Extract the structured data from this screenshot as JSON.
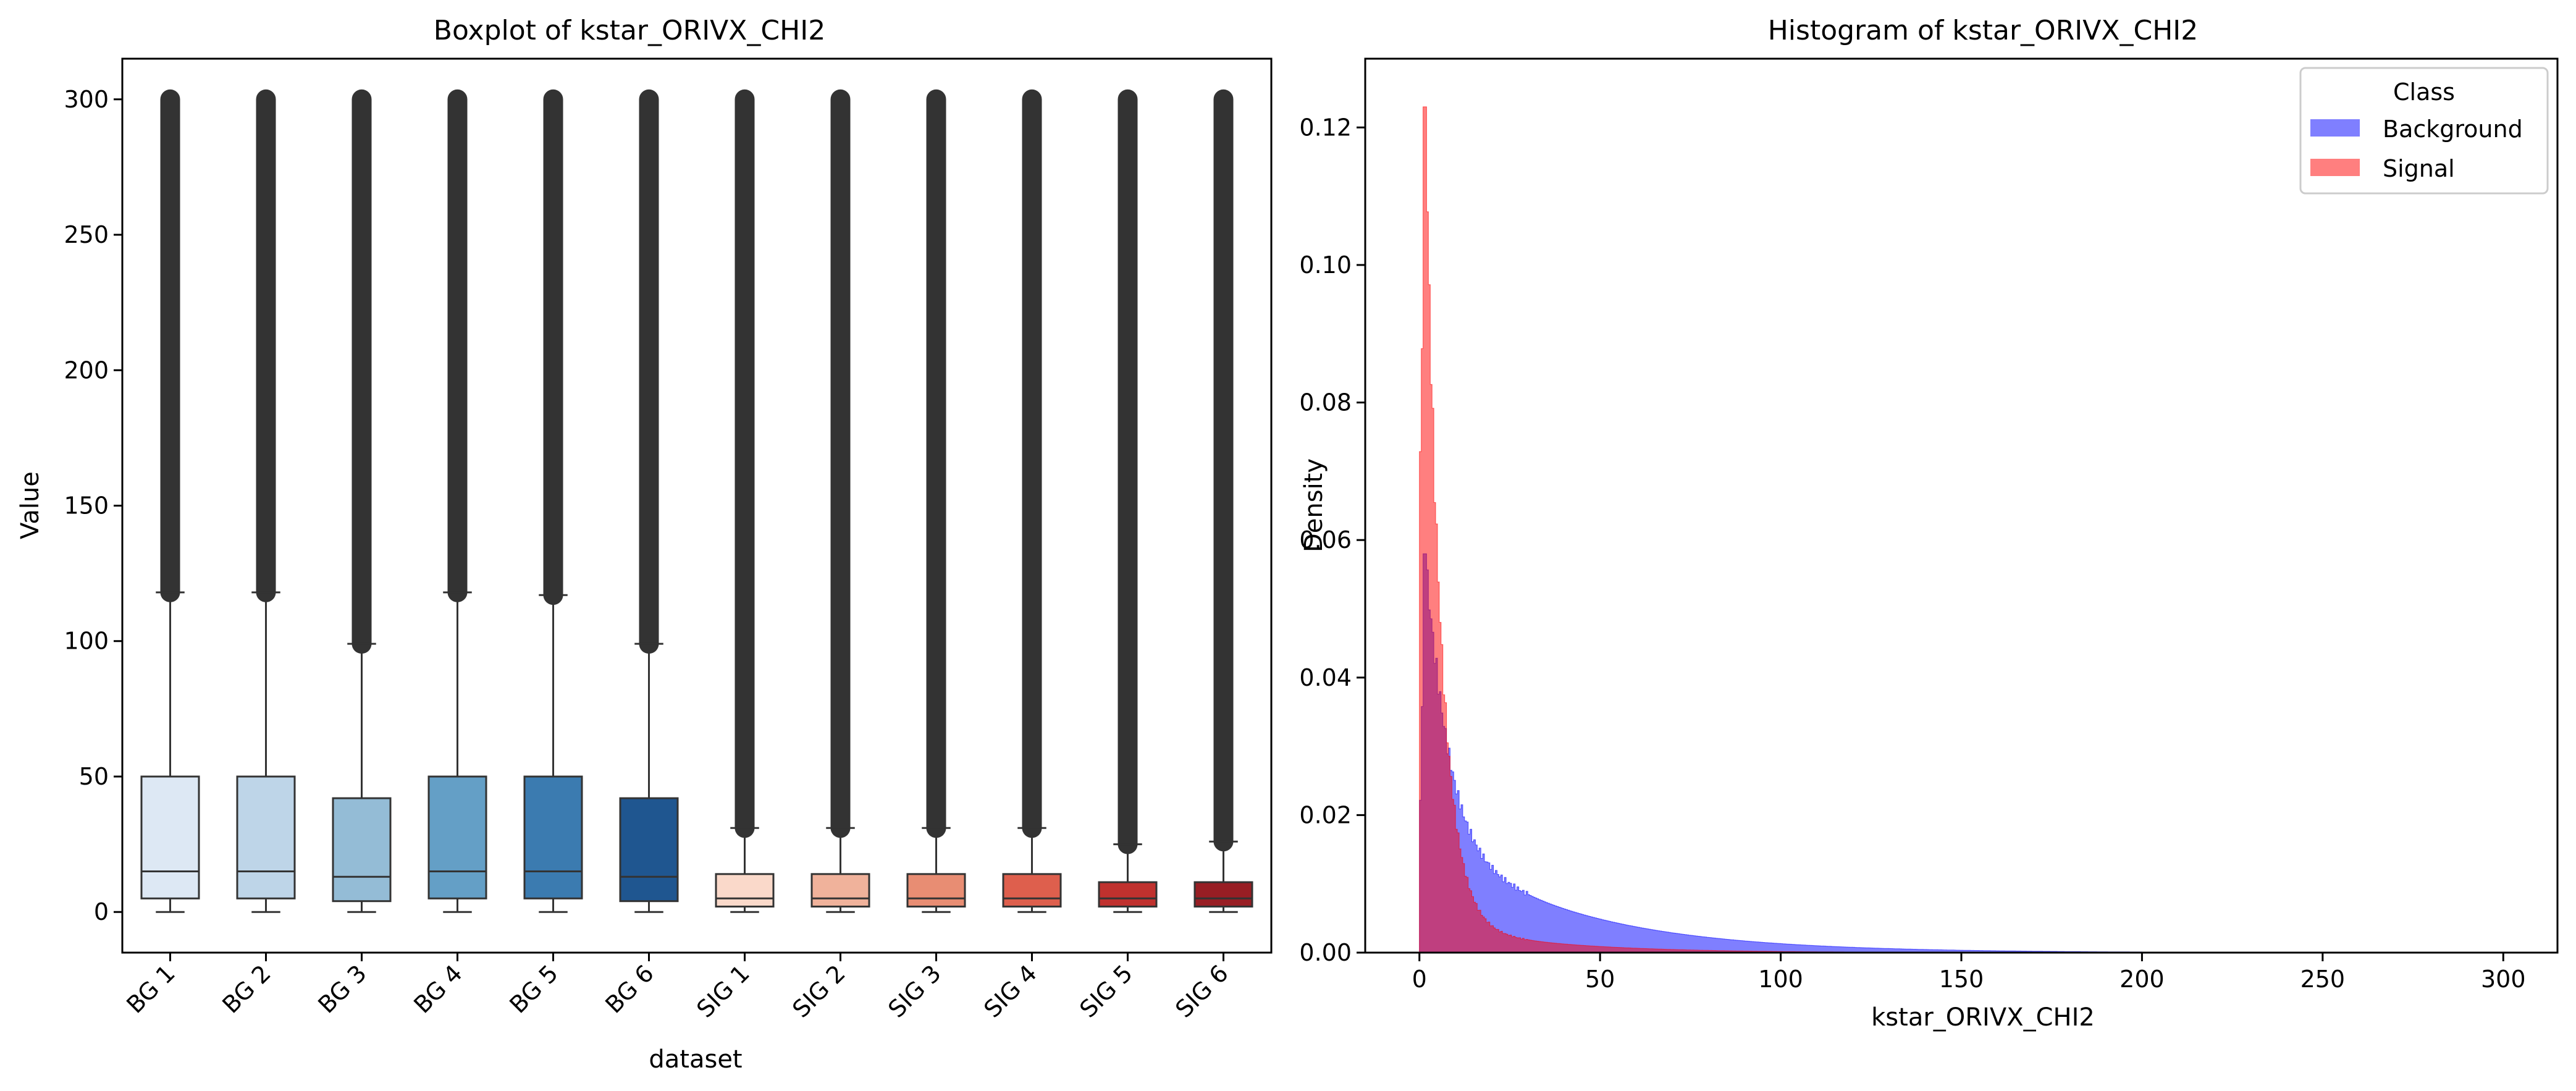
{
  "chart_data": [
    {
      "type": "box",
      "title": "Boxplot of kstar_ORIVX_CHI2",
      "xlabel": "dataset",
      "ylabel": "Value",
      "ylim": [
        -15,
        315
      ],
      "yticks": [
        0,
        50,
        100,
        150,
        200,
        250,
        300
      ],
      "categories": [
        "BG 1",
        "BG 2",
        "BG 3",
        "BG 4",
        "BG 5",
        "BG 6",
        "SIG 1",
        "SIG 2",
        "SIG 3",
        "SIG 4",
        "SIG 5",
        "SIG 6"
      ],
      "boxes": [
        {
          "label": "BG 1",
          "whislo": 0,
          "q1": 5,
          "median": 15,
          "q3": 50,
          "whishi": 118,
          "flier_max": 300,
          "color": "#dde8f4"
        },
        {
          "label": "BG 2",
          "whislo": 0,
          "q1": 5,
          "median": 15,
          "q3": 50,
          "whishi": 118,
          "flier_max": 300,
          "color": "#bed5e8"
        },
        {
          "label": "BG 3",
          "whislo": 0,
          "q1": 4,
          "median": 13,
          "q3": 42,
          "whishi": 99,
          "flier_max": 300,
          "color": "#94bcd6"
        },
        {
          "label": "BG 4",
          "whislo": 0,
          "q1": 5,
          "median": 15,
          "q3": 50,
          "whishi": 118,
          "flier_max": 300,
          "color": "#649fc6"
        },
        {
          "label": "BG 5",
          "whislo": 0,
          "q1": 5,
          "median": 15,
          "q3": 50,
          "whishi": 117,
          "flier_max": 300,
          "color": "#3b7bb0"
        },
        {
          "label": "BG 6",
          "whislo": 0,
          "q1": 4,
          "median": 13,
          "q3": 42,
          "whishi": 99,
          "flier_max": 300,
          "color": "#1f5690"
        },
        {
          "label": "SIG 1",
          "whislo": 0,
          "q1": 2,
          "median": 5,
          "q3": 14,
          "whishi": 31,
          "flier_max": 300,
          "color": "#fad9ca"
        },
        {
          "label": "SIG 2",
          "whislo": 0,
          "q1": 2,
          "median": 5,
          "q3": 14,
          "whishi": 31,
          "flier_max": 300,
          "color": "#f0b29b"
        },
        {
          "label": "SIG 3",
          "whislo": 0,
          "q1": 2,
          "median": 5,
          "q3": 14,
          "whishi": 31,
          "flier_max": 300,
          "color": "#e88d73"
        },
        {
          "label": "SIG 4",
          "whislo": 0,
          "q1": 2,
          "median": 5,
          "q3": 14,
          "whishi": 31,
          "flier_max": 300,
          "color": "#de5f4d"
        },
        {
          "label": "SIG 5",
          "whislo": 0,
          "q1": 2,
          "median": 5,
          "q3": 11,
          "whishi": 25,
          "flier_max": 300,
          "color": "#c0312e"
        },
        {
          "label": "SIG 6",
          "whislo": 0,
          "q1": 2,
          "median": 5,
          "q3": 11,
          "whishi": 26,
          "flier_max": 300,
          "color": "#981e24"
        }
      ]
    },
    {
      "type": "histogram",
      "title": "Histogram of kstar_ORIVX_CHI2",
      "xlabel": "kstar_ORIVX_CHI2",
      "ylabel": "Density",
      "xlim": [
        -15,
        315
      ],
      "ylim": [
        0,
        0.13
      ],
      "xticks": [
        0,
        50,
        100,
        150,
        200,
        250,
        300
      ],
      "yticks": [
        0.0,
        0.02,
        0.04,
        0.06,
        0.08,
        0.1,
        0.12
      ],
      "legend": {
        "title": "Class",
        "position": "upper right"
      },
      "series": [
        {
          "name": "Background",
          "color": "#0000ff",
          "alpha": 0.5,
          "peak_x": 1.5,
          "peak_density": 0.058
        },
        {
          "name": "Signal",
          "color": "#ff0000",
          "alpha": 0.5,
          "peak_x": 1.5,
          "peak_density": 0.123
        }
      ]
    }
  ]
}
